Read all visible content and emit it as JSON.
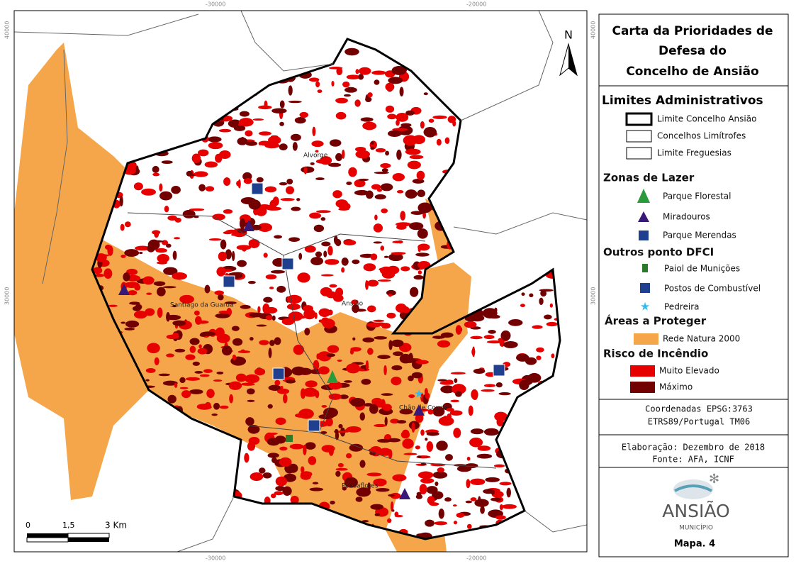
{
  "title": [
    "Carta da Prioridades de",
    "Defesa do",
    "Concelho de Ansião"
  ],
  "legend": {
    "admin": {
      "heading": "Limites Administrativos",
      "items": [
        "Limite Concelho Ansião",
        "Concelhos Limítrofes",
        "Limite Freguesias"
      ]
    },
    "leisure": {
      "heading": "Zonas de Lazer",
      "items": [
        "Parque Florestal",
        "Miradouros",
        "Parque Merendas"
      ]
    },
    "dfci": {
      "heading": "Outros ponto DFCI",
      "items": [
        "Paiol de Munições",
        "Postos de Combustível",
        "Pedreira"
      ]
    },
    "protect": {
      "heading": "Áreas a Proteger",
      "items": [
        "Rede Natura 2000"
      ]
    },
    "risk": {
      "heading": "Risco de Incêndio",
      "items": [
        "Muito Elevado",
        "Máximo"
      ]
    }
  },
  "map": {
    "north": "N",
    "grid_labels": {
      "x": [
        "-30000",
        "-20000"
      ],
      "y": [
        "40000",
        "30000"
      ]
    },
    "places": [
      "Alvorge",
      "Santiago da Guarda",
      "Ansião",
      "Chão de Couce",
      "Pousaflores"
    ],
    "scale": [
      "0",
      "1,5",
      "3 Km"
    ]
  },
  "footer": {
    "coords": [
      "Coordenadas EPSG:3763",
      "ETRS89/Portugal TM06"
    ],
    "credits": [
      "Elaboração: Dezembro de 2018",
      "Fonte: AFA, ICNF"
    ],
    "logo": [
      "ANSIÃO",
      "MUNICÍPIO"
    ],
    "map_number": "Mapa. 4"
  }
}
